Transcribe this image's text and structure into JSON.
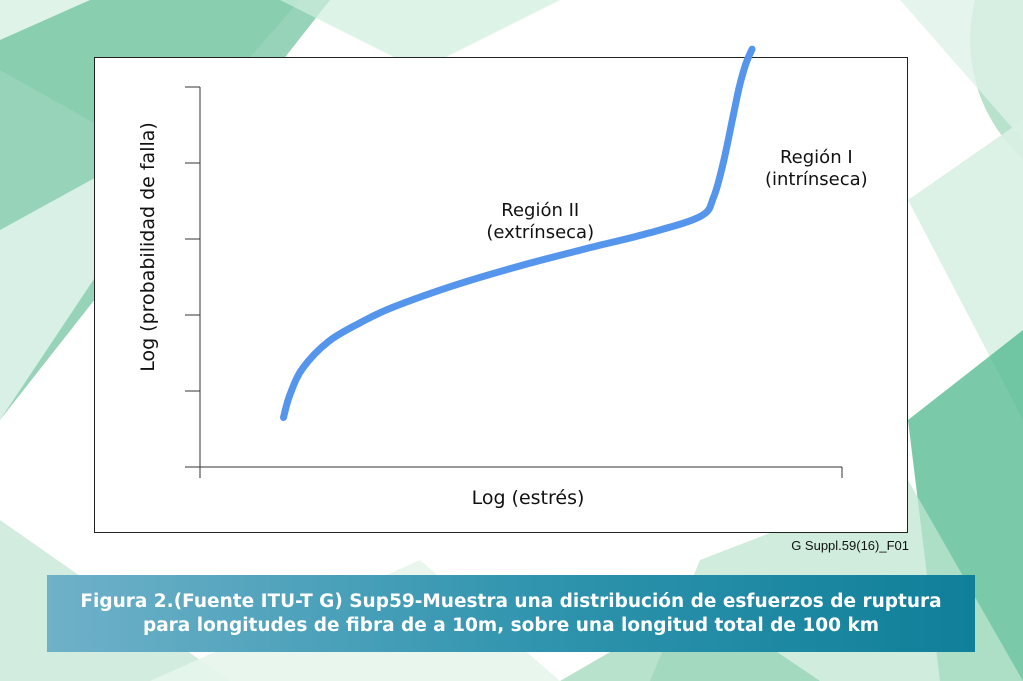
{
  "background": {
    "accent_colors": [
      "#5cbf8f",
      "#a6dcc0",
      "#3fa37a"
    ]
  },
  "chart_data": {
    "type": "line",
    "title": "",
    "xlabel": "Log (estrés)",
    "ylabel": "Log (probabilidad de falla)",
    "xlim": [
      0,
      10
    ],
    "ylim": [
      0,
      5
    ],
    "y_ticks": [
      1,
      2,
      3,
      4,
      5
    ],
    "grid": false,
    "series": [
      {
        "color": "#5595ec",
        "x": [
          1.3,
          1.4,
          1.6,
          2.0,
          2.5,
          3.0,
          4.0,
          5.0,
          6.0,
          7.0,
          7.8,
          8.0,
          8.15,
          8.3,
          8.4,
          8.5,
          8.6
        ],
        "y": [
          0.65,
          0.95,
          1.3,
          1.65,
          1.9,
          2.1,
          2.4,
          2.65,
          2.87,
          3.08,
          3.3,
          3.55,
          4.0,
          4.6,
          5.0,
          5.3,
          5.5
        ]
      }
    ],
    "annotations": [
      {
        "line1": "Región II",
        "line2": "(extrínseca)",
        "x": 5.3,
        "y": 3.3
      },
      {
        "line1": "Región I",
        "line2": "(intrínseca)",
        "x": 9.6,
        "y": 4.0
      }
    ]
  },
  "figure_id": "G Suppl.59(16)_F01",
  "caption": {
    "line1": "Figura 2.(Fuente ITU-T G) Sup59-Muestra una distribución de esfuerzos de ruptura",
    "line2": "para longitudes de fibra de a 10m, sobre una longitud total de 100 km"
  }
}
